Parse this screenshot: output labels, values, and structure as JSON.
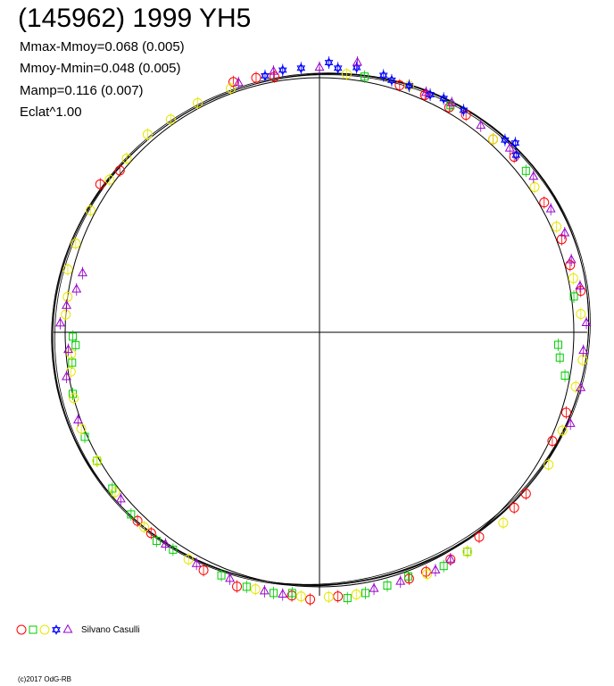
{
  "title": "(145962) 1999 YH5",
  "stats": [
    "Mmax-Mmoy=0.068 (0.005)",
    "Mmoy-Mmin=0.048 (0.005)",
    "Mamp=0.116 (0.007)",
    "Eclat^1.00"
  ],
  "legend": {
    "label": "Silvano Casulli",
    "markers": [
      {
        "shape": "circle",
        "color": "#ff0000"
      },
      {
        "shape": "square",
        "color": "#00cc00"
      },
      {
        "shape": "circle",
        "color": "#e6e600"
      },
      {
        "shape": "star",
        "color": "#0000ff"
      },
      {
        "shape": "triangle",
        "color": "#9900cc"
      }
    ]
  },
  "credit": "(c)2017 OdG-RB",
  "chart_data": {
    "type": "scatter",
    "projection": "polar",
    "description_note": "",
    "reference_circle_radius": 1.0,
    "angle_unit": "degrees",
    "series": [
      {
        "shape": "circle",
        "color": "#ff0000",
        "points": [
          [
            100,
            1.02
          ],
          [
            104,
            1.03
          ],
          [
            109,
            1.04
          ],
          [
            146,
            1.04
          ],
          [
            141,
            1.01
          ],
          [
            72,
            1.02
          ],
          [
            66,
            1.02
          ],
          [
            60,
            1.02
          ],
          [
            56,
            1.03
          ],
          [
            48,
            1.02
          ],
          [
            42,
            1.03
          ],
          [
            30,
            1.02
          ],
          [
            21,
            1.02
          ],
          [
            15,
            1.02
          ],
          [
            9,
            1.04
          ],
          [
            -18,
            1.02
          ],
          [
            -25,
            1.01
          ],
          [
            -38,
            1.03
          ],
          [
            -42,
            1.03
          ],
          [
            -52,
            1.02
          ],
          [
            -60,
            1.03
          ],
          [
            -66,
            1.03
          ],
          [
            -70,
            1.03
          ],
          [
            -86,
            1.04
          ],
          [
            -92,
            1.05
          ],
          [
            -96,
            1.04
          ],
          [
            -108,
            1.05
          ],
          [
            -116,
            1.04
          ],
          [
            -130,
            1.03
          ],
          [
            -134,
            1.03
          ]
        ]
      },
      {
        "shape": "square",
        "color": "#00cc00",
        "points": [
          [
            80,
            1.02
          ],
          [
            60,
            1.03
          ],
          [
            38,
            1.03
          ],
          [
            8,
            1.01
          ],
          [
            -3,
            0.94
          ],
          [
            -6,
            0.95
          ],
          [
            -10,
            0.98
          ],
          [
            -56,
            1.04
          ],
          [
            -62,
            1.04
          ],
          [
            -70,
            1.02
          ],
          [
            -75,
            1.03
          ],
          [
            -80,
            1.04
          ],
          [
            -84,
            1.05
          ],
          [
            -96,
            1.03
          ],
          [
            -100,
            1.04
          ],
          [
            -106,
            1.04
          ],
          [
            -112,
            1.03
          ],
          [
            -124,
            1.03
          ],
          [
            -128,
            1.04
          ],
          [
            -136,
            1.03
          ],
          [
            -143,
            1.02
          ],
          [
            -150,
            1.01
          ],
          [
            -156,
            1.01
          ],
          [
            -166,
            1.0
          ],
          [
            -173,
            0.98
          ],
          [
            -177,
            0.96
          ],
          [
            -179,
            0.97
          ]
        ]
      },
      {
        "shape": "circle",
        "color": "#e6e600",
        "points": [
          [
            110,
            1.02
          ],
          [
            118,
            1.02
          ],
          [
            125,
            1.02
          ],
          [
            131,
            1.03
          ],
          [
            138,
            1.02
          ],
          [
            144,
            1.02
          ],
          [
            152,
            1.02
          ],
          [
            160,
            1.02
          ],
          [
            166,
            1.02
          ],
          [
            172,
            1.0
          ],
          [
            176,
            1.0
          ],
          [
            -175,
            0.98
          ],
          [
            -171,
            0.99
          ],
          [
            -165,
            1.0
          ],
          [
            -158,
            1.01
          ],
          [
            -150,
            1.01
          ],
          [
            -142,
            1.02
          ],
          [
            -132,
            1.03
          ],
          [
            -120,
            1.03
          ],
          [
            -104,
            1.04
          ],
          [
            -94,
            1.04
          ],
          [
            -88,
            1.04
          ],
          [
            -82,
            1.04
          ],
          [
            -66,
            1.04
          ],
          [
            -56,
            1.04
          ],
          [
            -46,
            1.04
          ],
          [
            -30,
            1.04
          ],
          [
            -22,
            1.03
          ],
          [
            -12,
            1.03
          ],
          [
            -6,
            1.04
          ],
          [
            4,
            1.03
          ],
          [
            12,
            1.02
          ],
          [
            24,
            1.02
          ],
          [
            34,
            1.02
          ],
          [
            48,
            1.02
          ],
          [
            70,
            1.03
          ],
          [
            84,
            1.02
          ]
        ]
      },
      {
        "shape": "star",
        "color": "#0000ff",
        "points": [
          [
            82,
            1.05
          ],
          [
            86,
            1.04
          ],
          [
            88,
            1.06
          ],
          [
            94,
            1.04
          ],
          [
            98,
            1.04
          ],
          [
            102,
            1.03
          ],
          [
            76,
            1.04
          ],
          [
            74,
            1.03
          ],
          [
            70,
            1.03
          ],
          [
            65,
            1.03
          ],
          [
            62,
            1.04
          ],
          [
            57,
            1.04
          ],
          [
            44,
            1.07
          ],
          [
            42,
            1.04
          ],
          [
            46,
            1.05
          ]
        ]
      },
      {
        "shape": "triangle",
        "color": "#9900cc",
        "points": [
          [
            82,
            1.07
          ],
          [
            90,
            1.04
          ],
          [
            100,
            1.04
          ],
          [
            108,
            1.03
          ],
          [
            66,
            1.03
          ],
          [
            60,
            1.04
          ],
          [
            52,
            1.03
          ],
          [
            44,
            1.04
          ],
          [
            36,
            1.04
          ],
          [
            28,
            1.03
          ],
          [
            22,
            1.04
          ],
          [
            16,
            1.03
          ],
          [
            10,
            1.04
          ],
          [
            2,
            1.05
          ],
          [
            -4,
            1.04
          ],
          [
            -12,
            1.05
          ],
          [
            -20,
            1.05
          ],
          [
            -60,
            1.03
          ],
          [
            -64,
            1.04
          ],
          [
            -72,
            1.03
          ],
          [
            -78,
            1.03
          ],
          [
            -98,
            1.04
          ],
          [
            -102,
            1.04
          ],
          [
            -110,
            1.03
          ],
          [
            -118,
            1.03
          ],
          [
            -126,
            1.03
          ],
          [
            -140,
            1.02
          ],
          [
            -160,
            1.01
          ],
          [
            -170,
            1.01
          ],
          [
            -176,
            0.99
          ],
          [
            178,
            1.02
          ],
          [
            174,
            1.0
          ],
          [
            170,
            0.97
          ],
          [
            166,
            0.96
          ]
        ]
      }
    ]
  }
}
